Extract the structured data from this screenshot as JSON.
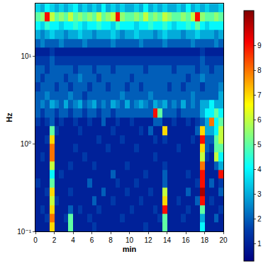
{
  "chart_data": {
    "type": "heatmap",
    "x_label": "min",
    "y_label": "Hz",
    "log": "y",
    "xlim": [
      0,
      20
    ],
    "xticks": [
      0,
      2,
      4,
      6,
      8,
      10,
      12,
      14,
      16,
      18,
      20
    ],
    "ylim": [
      0.1,
      40
    ],
    "yticks": [
      {
        "value": 0.1,
        "label": "10⁻¹"
      },
      {
        "value": 1,
        "label": "10⁰"
      },
      {
        "value": 10,
        "label": "10¹"
      }
    ],
    "color": "Jet",
    "zlim": [
      0.3,
      10.4
    ],
    "zticks": [
      1,
      2,
      3,
      4,
      5,
      6,
      7,
      8,
      9
    ],
    "x": [
      0.25,
      0.75,
      1.25,
      1.75,
      2.25,
      2.75,
      3.25,
      3.75,
      4.25,
      4.75,
      5.25,
      5.75,
      6.25,
      6.75,
      7.25,
      7.75,
      8.25,
      8.75,
      9.25,
      9.75,
      10.25,
      10.75,
      11.25,
      11.75,
      12.25,
      12.75,
      13.25,
      13.75,
      14.25,
      14.75,
      15.25,
      15.75,
      16.25,
      16.75,
      17.25,
      17.75,
      18.25,
      18.75,
      19.25,
      19.75
    ],
    "y": [
      0.112,
      0.141,
      0.178,
      0.224,
      0.282,
      0.355,
      0.447,
      0.562,
      0.708,
      0.891,
      1.12,
      1.41,
      1.78,
      2.24,
      2.82,
      3.55,
      4.47,
      5.62,
      7.08,
      8.91,
      11.2,
      14.1,
      17.8,
      22.4,
      28.2,
      35.5
    ],
    "z": [
      [
        1,
        1,
        1,
        7,
        1,
        1,
        1,
        5,
        1,
        1,
        1,
        1,
        1.5,
        1,
        1,
        1,
        1,
        1,
        1,
        1,
        1,
        1,
        1,
        1.5,
        1,
        1,
        1,
        5,
        1,
        1,
        1,
        1,
        1,
        1,
        1,
        4,
        1,
        1,
        1,
        1
      ],
      [
        1,
        1,
        1.5,
        8,
        1,
        1,
        1.5,
        5,
        1,
        1,
        1,
        1.5,
        1,
        1,
        1,
        1,
        1,
        1,
        1.5,
        1,
        1,
        1,
        1,
        1,
        1,
        1,
        1.5,
        5,
        1,
        1,
        1,
        1.5,
        1,
        1,
        1,
        3,
        1,
        1,
        2,
        1
      ],
      [
        1,
        1.5,
        1,
        7,
        1,
        1,
        1,
        2,
        1,
        1.5,
        1,
        1,
        1,
        1.5,
        1,
        1,
        1,
        1,
        1,
        1,
        1.5,
        1,
        1,
        1,
        1,
        1.5,
        1,
        9,
        1,
        1,
        1,
        1,
        1.5,
        1,
        1,
        5,
        1,
        1,
        1,
        1.5
      ],
      [
        1,
        1,
        1,
        6,
        1.5,
        1,
        1,
        1,
        1,
        1,
        1,
        1,
        2,
        1,
        1,
        1,
        1.5,
        1,
        1,
        1,
        1,
        1,
        1.5,
        1,
        1,
        1,
        1,
        7,
        1,
        1,
        1.5,
        1,
        1,
        1,
        2,
        9,
        1,
        1.5,
        1,
        1
      ],
      [
        1,
        1,
        1.5,
        7,
        1,
        1,
        1,
        1.5,
        1,
        1,
        1,
        1,
        1,
        1,
        2,
        1,
        1,
        1,
        1,
        1.5,
        1,
        1,
        1,
        1,
        1.5,
        1,
        1,
        6,
        1,
        1,
        1,
        1,
        2,
        1,
        1,
        10,
        1,
        1,
        1,
        2
      ],
      [
        1.5,
        1,
        1,
        5,
        1,
        1,
        1,
        1,
        1,
        1,
        1,
        2,
        1,
        1,
        1,
        1,
        1,
        1.5,
        1,
        1,
        1,
        1.5,
        1,
        1,
        1,
        1,
        1,
        2,
        1,
        1,
        1,
        1,
        1,
        1,
        1.5,
        9,
        1,
        2,
        1,
        1.5
      ],
      [
        1,
        1,
        1,
        4,
        1,
        1.5,
        1,
        1,
        1,
        1,
        1,
        1,
        1,
        1,
        1,
        1,
        2,
        1,
        1,
        1,
        1,
        1,
        1,
        1.5,
        1,
        1,
        1,
        2,
        1,
        1,
        1,
        1,
        1.5,
        1,
        1,
        9,
        1,
        1,
        1,
        9
      ],
      [
        1,
        1,
        1,
        6,
        1,
        1,
        1,
        1.5,
        1,
        1,
        1,
        1,
        1.5,
        1,
        1,
        1,
        1,
        1,
        1,
        1.5,
        1,
        1,
        1,
        1,
        1,
        1,
        1,
        1.5,
        1,
        1,
        1,
        1,
        1,
        1,
        1,
        8,
        1,
        1,
        2,
        3
      ],
      [
        1,
        1.5,
        1,
        8,
        1,
        1,
        1,
        1,
        1,
        1,
        1.5,
        1,
        1,
        1,
        1,
        1,
        1,
        1,
        1,
        1,
        1,
        1,
        1,
        1,
        1,
        1.5,
        1,
        1,
        1,
        1,
        1,
        1,
        1,
        1,
        1,
        6,
        1.5,
        1,
        6,
        4
      ],
      [
        1,
        1,
        1,
        8,
        1,
        1,
        1,
        1,
        1.5,
        1,
        1,
        1,
        1,
        1,
        1,
        1.5,
        1,
        1,
        1,
        1,
        1,
        1.5,
        1,
        1,
        1,
        1,
        1,
        1,
        1,
        1,
        1.5,
        1,
        1,
        1,
        1,
        7,
        2,
        1.5,
        5,
        5
      ],
      [
        1,
        1,
        1.5,
        7,
        1,
        1,
        1,
        1,
        1,
        1,
        1,
        1,
        1,
        1.5,
        1,
        1,
        1,
        1,
        1.5,
        1,
        1,
        1,
        1,
        1,
        1,
        1.5,
        1,
        1.5,
        1,
        1,
        1,
        1,
        1,
        1.5,
        1,
        9,
        2,
        2,
        5,
        6
      ],
      [
        1,
        1,
        1,
        5,
        1.5,
        1,
        1,
        1,
        1,
        1.5,
        1,
        1,
        1,
        1,
        1,
        1,
        1.5,
        1,
        1,
        1,
        1,
        1,
        1.5,
        1,
        2,
        1,
        1,
        7,
        1,
        1,
        1,
        1,
        1,
        1,
        2,
        7,
        3,
        3,
        4,
        6
      ],
      [
        1.5,
        1,
        1.5,
        2,
        1,
        1.5,
        1,
        1,
        1.5,
        1,
        1,
        1.5,
        1,
        1,
        2,
        1,
        1,
        1.5,
        1,
        1,
        1.5,
        1,
        1,
        1,
        1,
        2,
        2,
        1,
        1,
        1.5,
        1,
        1,
        1.5,
        1,
        1.5,
        2,
        3,
        8,
        4,
        5
      ],
      [
        2,
        1.5,
        2,
        2,
        1.5,
        2,
        2,
        1.5,
        2,
        2,
        1.5,
        2,
        2,
        1.5,
        2,
        2,
        1.5,
        2,
        2,
        2,
        2,
        2,
        2,
        2,
        2,
        9,
        5,
        2,
        2,
        2,
        1.5,
        2,
        2,
        2,
        2,
        3,
        4,
        4,
        5,
        4
      ],
      [
        2,
        2.5,
        2,
        3,
        2.5,
        2,
        3,
        2,
        2.5,
        3,
        2,
        2.5,
        3,
        2,
        2.5,
        2,
        3,
        2.5,
        2,
        3,
        2,
        2.5,
        3,
        2.5,
        2,
        3,
        2.5,
        3,
        2,
        2.5,
        2,
        3,
        2,
        2.5,
        2,
        3,
        3,
        4,
        3,
        3
      ],
      [
        2,
        2,
        2.5,
        2,
        2,
        2,
        2,
        2.5,
        2,
        2,
        1.5,
        2,
        2,
        2,
        2,
        2,
        2,
        2,
        2.5,
        2,
        2,
        2,
        2,
        2,
        2.5,
        2,
        2,
        2,
        2,
        2,
        2,
        2,
        2,
        2.5,
        2,
        2,
        2,
        2,
        2,
        3
      ],
      [
        1.5,
        2,
        2,
        2,
        1.5,
        2,
        2,
        1.5,
        2,
        2,
        2,
        1.5,
        2,
        2,
        2,
        1.5,
        2,
        2,
        2,
        1.5,
        2,
        2,
        1.5,
        2,
        2,
        2,
        2,
        2,
        1.5,
        2,
        2,
        1.5,
        2,
        2,
        2,
        1.5,
        2,
        2,
        2,
        2.5
      ],
      [
        2,
        1.5,
        2,
        2,
        2,
        2,
        1.5,
        2,
        2,
        2.5,
        2,
        2,
        2,
        1.5,
        2,
        2,
        2,
        2,
        2,
        2,
        1.5,
        2,
        2,
        2,
        2,
        2,
        2,
        2,
        2,
        2,
        2,
        2,
        1.5,
        2,
        2,
        2.5,
        2,
        2,
        2,
        2
      ],
      [
        2,
        2,
        1.5,
        2,
        2,
        2,
        2,
        2,
        1.5,
        2,
        2,
        2,
        1.5,
        2,
        2,
        2,
        1.5,
        2,
        2,
        2,
        2,
        2,
        2,
        1.5,
        2,
        2,
        2,
        2,
        2,
        1.5,
        2,
        2,
        2,
        2,
        1.5,
        2,
        2,
        1.5,
        2,
        2
      ],
      [
        1.5,
        1.5,
        1.5,
        2,
        1.5,
        1.5,
        1.5,
        1.5,
        1.5,
        1.5,
        1.5,
        1.5,
        1.5,
        1.5,
        1.5,
        1.5,
        1.5,
        1.5,
        1.5,
        1.5,
        1.5,
        1.5,
        1.5,
        1.5,
        1.5,
        1.5,
        1.5,
        1.5,
        1.5,
        1.5,
        1.5,
        1.5,
        1.5,
        1.5,
        1.5,
        2,
        1.5,
        1.5,
        1.5,
        1.5
      ],
      [
        1,
        1,
        1,
        1.5,
        1,
        1,
        1,
        1,
        1,
        1,
        1,
        1,
        1,
        1,
        1,
        1,
        1,
        1,
        1,
        1,
        1,
        1,
        1,
        1,
        1,
        1,
        1,
        1,
        1,
        1,
        1,
        1,
        1,
        1,
        1,
        1.5,
        1,
        1,
        1,
        1
      ],
      [
        2,
        2.5,
        2,
        2,
        2,
        2.5,
        2,
        2,
        2,
        2,
        2.5,
        2,
        2,
        2,
        2,
        2,
        2.5,
        2,
        2,
        2,
        2,
        2,
        2.5,
        2,
        2,
        2,
        2,
        2.5,
        2,
        2,
        2,
        2,
        2,
        2.5,
        2,
        2,
        2,
        2,
        2.5,
        2
      ],
      [
        3,
        2.5,
        3,
        3.5,
        3,
        3,
        2.5,
        3,
        3,
        3.5,
        3,
        3,
        2.5,
        3,
        3,
        3,
        3.5,
        3,
        2.5,
        3,
        3,
        3.5,
        3,
        3,
        3,
        2.5,
        3,
        3.5,
        3,
        3,
        3,
        2.5,
        3,
        3,
        3.5,
        3,
        3,
        3,
        2.5,
        3
      ],
      [
        4,
        3.5,
        4.5,
        4,
        4,
        3.5,
        4,
        4,
        4.5,
        4,
        3.5,
        4,
        4,
        4.5,
        4,
        4,
        3.5,
        4.5,
        4,
        4,
        4,
        3.5,
        4,
        4,
        4.5,
        4,
        4,
        4.5,
        4,
        3.5,
        4,
        4,
        4.5,
        4,
        5,
        4,
        3.5,
        4,
        4,
        4
      ],
      [
        5,
        5.5,
        9,
        6,
        5,
        5.5,
        5,
        6,
        5,
        5.5,
        5,
        5.5,
        5,
        6,
        5,
        5.5,
        6,
        9,
        5.5,
        5,
        5,
        5.5,
        5,
        6,
        5,
        5.5,
        5,
        6,
        5.5,
        5,
        5,
        5.5,
        5,
        6,
        9,
        5.5,
        5,
        5,
        5.5,
        5
      ],
      [
        3.5,
        3,
        4,
        3.5,
        3,
        3.5,
        3,
        3.5,
        4,
        3,
        3.5,
        3,
        3.5,
        3,
        4,
        3,
        3.5,
        3,
        3.5,
        3,
        3,
        3.5,
        3,
        4,
        3,
        3.5,
        3,
        3.5,
        3,
        3,
        3.5,
        3,
        4,
        3,
        3.5,
        3,
        3.5,
        3,
        3,
        3.5
      ]
    ]
  }
}
